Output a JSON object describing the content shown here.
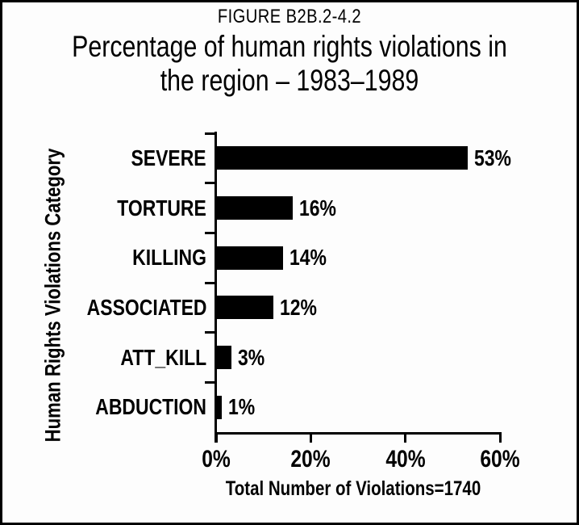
{
  "figure": {
    "label": "FIGURE B2B.2-4.2",
    "title_lines": [
      "Percentage of human rights violations in",
      "the region – 1983–1989"
    ]
  },
  "chart_data": {
    "type": "bar",
    "orientation": "horizontal",
    "title": "Percentage of human rights violations in the region – 1983–1989",
    "figure_label": "FIGURE B2B.2-4.2",
    "categories": [
      "SEVERE",
      "TORTURE",
      "KILLING",
      "ASSOCIATED",
      "ATT_KILL",
      "ABDUCTION"
    ],
    "values": [
      53,
      16,
      14,
      12,
      3,
      1
    ],
    "value_labels": [
      "53%",
      "16%",
      "14%",
      "12%",
      "3%",
      "1%"
    ],
    "xlabel": "Total Number of Violations=1740",
    "ylabel": "Human Rights Violations Category",
    "x_tick_values": [
      0,
      20,
      40,
      60
    ],
    "x_tick_labels": [
      "0%",
      "20%",
      "40%",
      "60%"
    ],
    "xlim": [
      0,
      60
    ],
    "grid": false,
    "legend": false,
    "bar_color": "#000000",
    "text_color": "#000000",
    "background": "#fdfdfd",
    "border_color": "#000000"
  }
}
